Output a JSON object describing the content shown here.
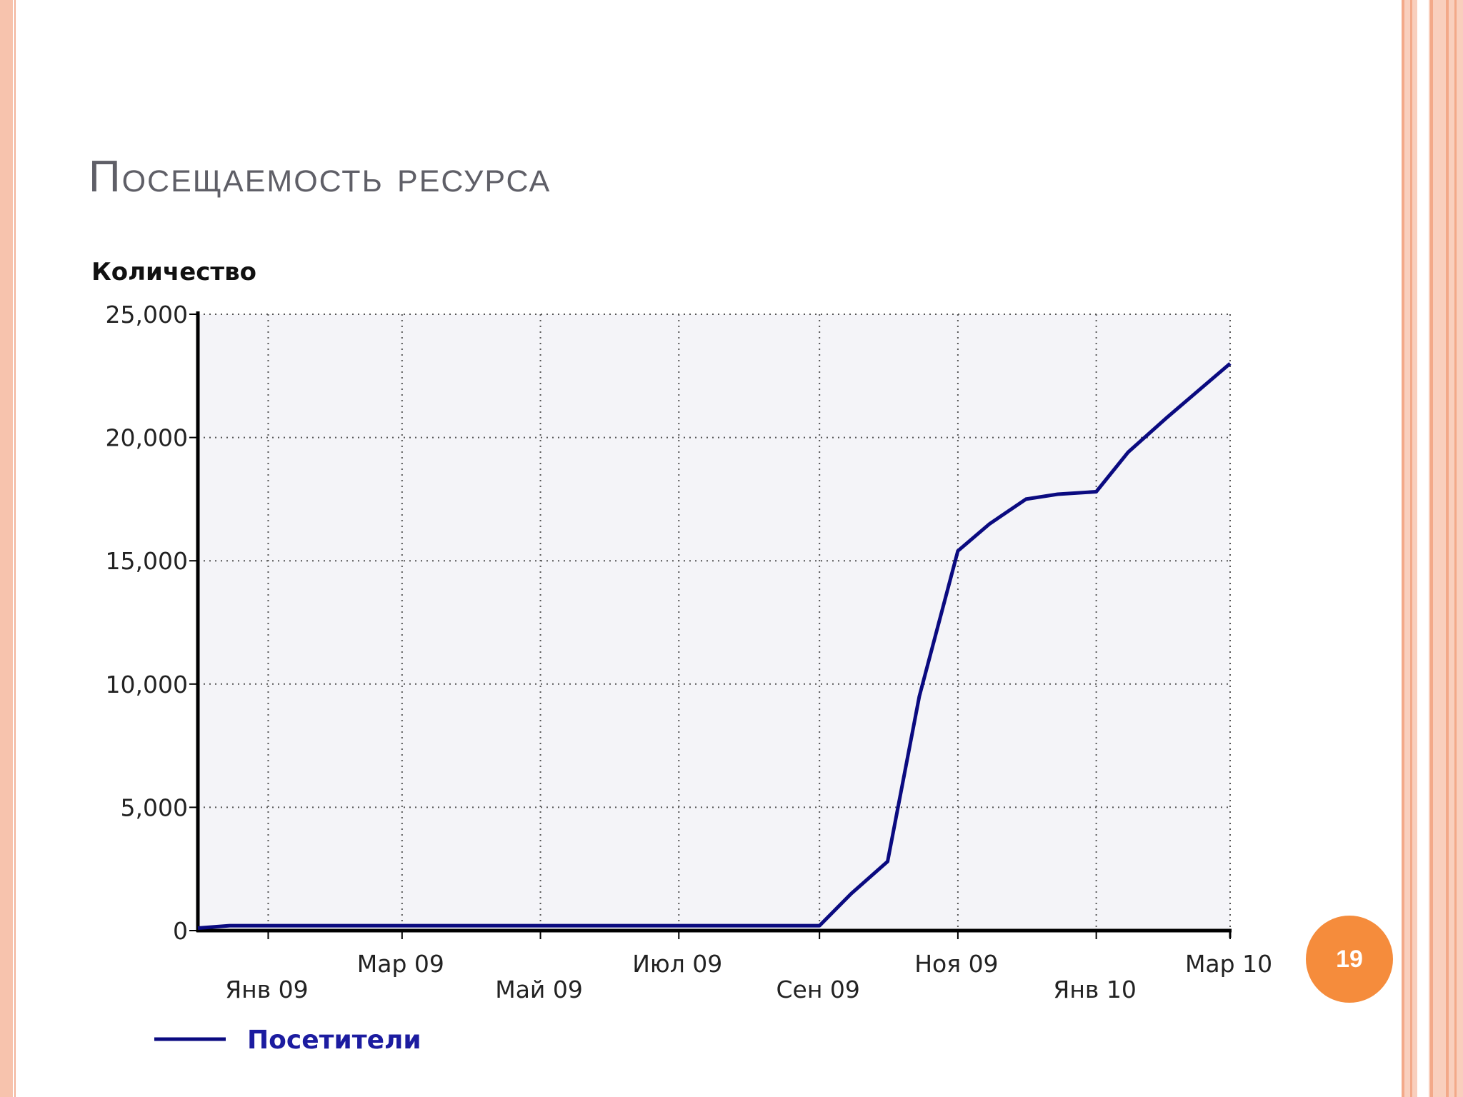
{
  "slide": {
    "title": "Посещаемость ресурса",
    "page_number": "19",
    "accent_color": "#f58c3c",
    "frame_color": "#f7c3ad"
  },
  "chart_data": {
    "type": "line",
    "title": "",
    "ylabel": "Количество",
    "xlabel": "",
    "ylim": [
      0,
      25000
    ],
    "yticks": [
      0,
      5000,
      10000,
      15000,
      20000,
      25000
    ],
    "ytick_labels": [
      "0",
      "5,000",
      "10,000",
      "15,000",
      "20,000",
      "25,000"
    ],
    "xticks": [
      "Янв 09",
      "Мар 09",
      "Май 09",
      "Июл 09",
      "Сен 09",
      "Ноя 09",
      "Янв 10",
      "Мар 10"
    ],
    "xlim": [
      "2008-12-01",
      "2010-03-01"
    ],
    "grid": true,
    "line_color": "#0a0a80",
    "plot_background": "#f4f4f8",
    "legend_position": "bottom-left",
    "series": [
      {
        "name": "Посетители",
        "x": [
          "2008-12-01",
          "2008-12-15",
          "2009-09-01",
          "2009-09-15",
          "2009-10-01",
          "2009-10-15",
          "2009-11-01",
          "2009-11-15",
          "2009-12-01",
          "2009-12-15",
          "2010-01-01",
          "2010-01-15",
          "2010-02-01",
          "2010-02-15",
          "2010-03-01"
        ],
        "values": [
          100,
          200,
          200,
          1500,
          2800,
          9500,
          15400,
          16500,
          17500,
          17700,
          17800,
          19400,
          20800,
          21900,
          23000
        ]
      }
    ]
  }
}
